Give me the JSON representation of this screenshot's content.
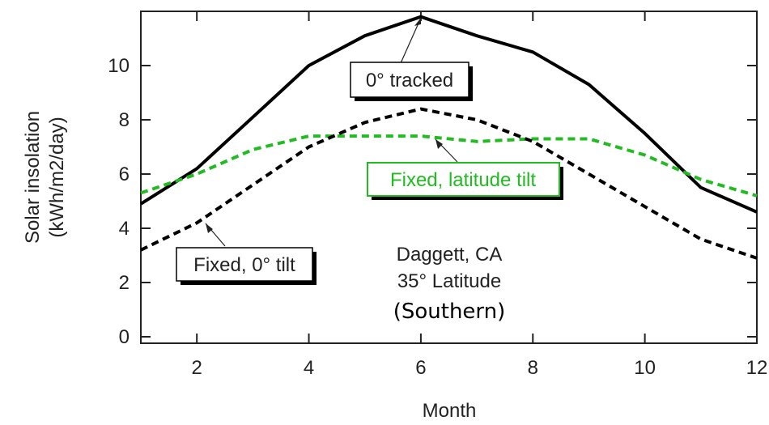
{
  "chart_data": {
    "type": "line",
    "xlabel": "Month",
    "ylabel_line1": "Solar insolation",
    "ylabel_line2": "(kWh/m2/day)",
    "xlim": [
      1,
      12
    ],
    "ylim": [
      0,
      12
    ],
    "x_ticks": [
      2,
      4,
      6,
      8,
      10,
      12
    ],
    "y_ticks": [
      0,
      2,
      4,
      6,
      8,
      10
    ],
    "grid": false,
    "series": [
      {
        "name": "0° tracked",
        "color": "#000000",
        "style": "solid",
        "x": [
          1,
          2,
          3,
          4,
          5,
          6,
          7,
          8,
          9,
          10,
          11,
          12
        ],
        "values": [
          4.9,
          6.2,
          8.1,
          10.0,
          11.1,
          11.8,
          11.1,
          10.5,
          9.3,
          7.5,
          5.5,
          4.6
        ]
      },
      {
        "name": "Fixed, latitude tilt",
        "color": "#22bb22",
        "style": "dashed",
        "x": [
          1,
          2,
          3,
          4,
          5,
          6,
          7,
          8,
          9,
          10,
          11,
          12
        ],
        "values": [
          5.3,
          6.0,
          6.9,
          7.4,
          7.4,
          7.4,
          7.2,
          7.3,
          7.3,
          6.7,
          5.8,
          5.2
        ]
      },
      {
        "name": "Fixed, 0° tilt",
        "color": "#000000",
        "style": "dashed",
        "x": [
          1,
          2,
          3,
          4,
          5,
          6,
          7,
          8,
          9,
          10,
          11,
          12
        ],
        "values": [
          3.2,
          4.2,
          5.6,
          7.0,
          7.9,
          8.4,
          8.0,
          7.2,
          6.0,
          4.8,
          3.6,
          2.9
        ]
      }
    ],
    "annotations": {
      "location_line1": "Daggett, CA",
      "location_line2": "35° Latitude",
      "location_line3": "(Southern)"
    }
  }
}
